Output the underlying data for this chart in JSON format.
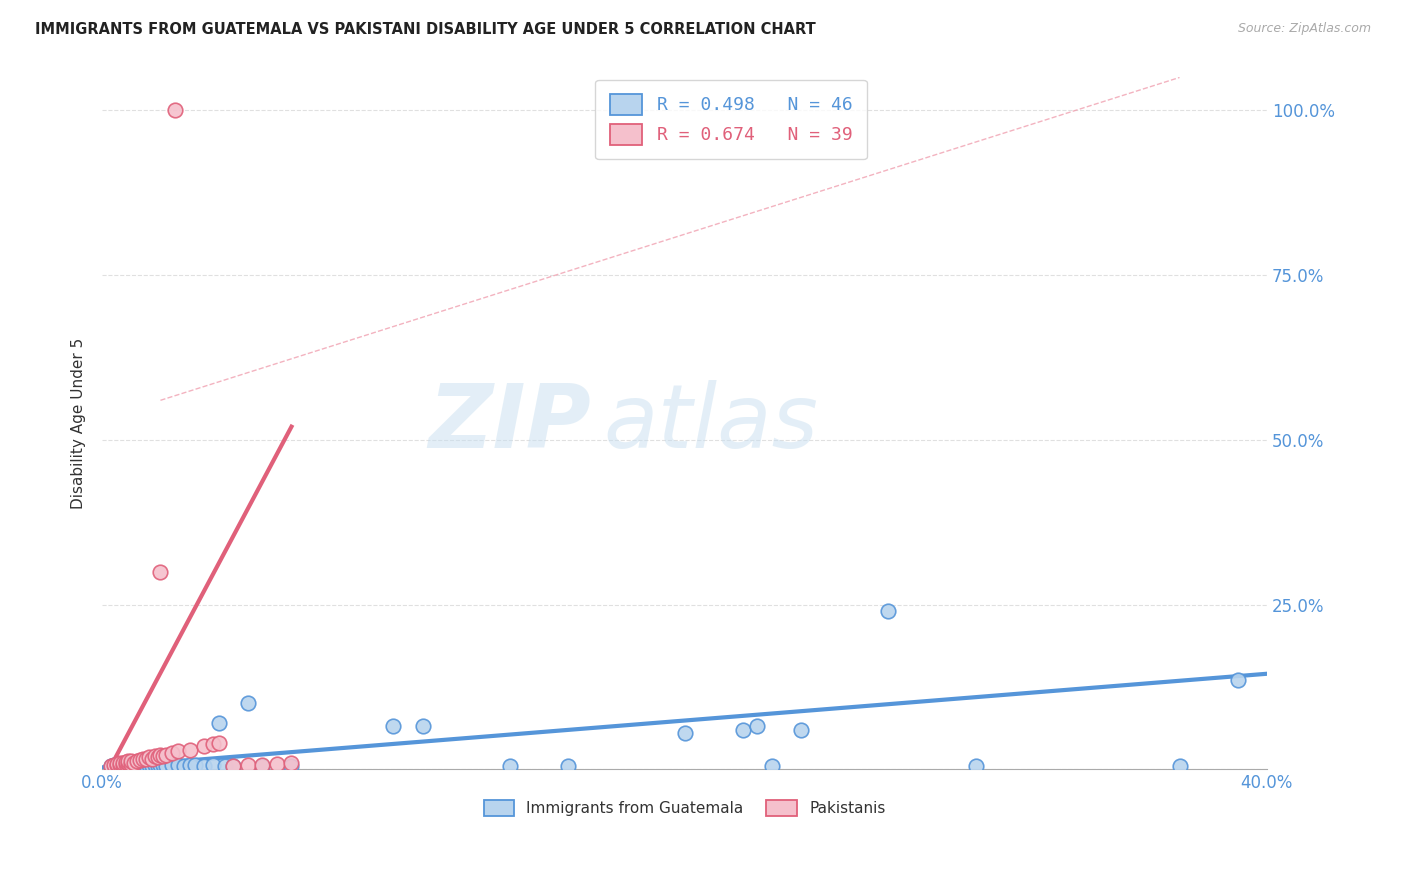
{
  "title": "IMMIGRANTS FROM GUATEMALA VS PAKISTANI DISABILITY AGE UNDER 5 CORRELATION CHART",
  "source": "Source: ZipAtlas.com",
  "ylabel": "Disability Age Under 5",
  "xlim": [
    0.0,
    0.4
  ],
  "ylim": [
    0.0,
    1.05
  ],
  "watermark_zip": "ZIP",
  "watermark_atlas": "atlas",
  "blue_color": "#b8d4ee",
  "blue_line_color": "#5595d9",
  "pink_color": "#f5c0cc",
  "pink_line_color": "#e0607a",
  "legend_blue_R": "R = 0.498",
  "legend_blue_N": "N = 46",
  "legend_pink_R": "R = 0.674",
  "legend_pink_N": "N = 39",
  "legend_label_blue": "Immigrants from Guatemala",
  "legend_label_pink": "Pakistanis",
  "blue_scatter_x": [
    0.003,
    0.004,
    0.005,
    0.006,
    0.007,
    0.008,
    0.009,
    0.01,
    0.011,
    0.012,
    0.013,
    0.014,
    0.015,
    0.016,
    0.017,
    0.018,
    0.019,
    0.02,
    0.021,
    0.022,
    0.024,
    0.026,
    0.028,
    0.03,
    0.032,
    0.035,
    0.038,
    0.04,
    0.042,
    0.045,
    0.05,
    0.055,
    0.065,
    0.1,
    0.11,
    0.14,
    0.16,
    0.2,
    0.22,
    0.225,
    0.23,
    0.24,
    0.27,
    0.3,
    0.37,
    0.39
  ],
  "blue_scatter_y": [
    0.005,
    0.006,
    0.007,
    0.005,
    0.008,
    0.006,
    0.007,
    0.008,
    0.005,
    0.006,
    0.007,
    0.005,
    0.006,
    0.007,
    0.005,
    0.006,
    0.005,
    0.007,
    0.006,
    0.005,
    0.006,
    0.007,
    0.005,
    0.006,
    0.007,
    0.005,
    0.006,
    0.07,
    0.005,
    0.005,
    0.1,
    0.005,
    0.005,
    0.065,
    0.065,
    0.005,
    0.005,
    0.055,
    0.06,
    0.065,
    0.005,
    0.06,
    0.24,
    0.005,
    0.005,
    0.135
  ],
  "pink_scatter_x": [
    0.003,
    0.004,
    0.005,
    0.005,
    0.006,
    0.006,
    0.007,
    0.007,
    0.008,
    0.008,
    0.009,
    0.009,
    0.01,
    0.01,
    0.011,
    0.012,
    0.013,
    0.014,
    0.015,
    0.016,
    0.017,
    0.018,
    0.019,
    0.02,
    0.021,
    0.022,
    0.024,
    0.026,
    0.03,
    0.035,
    0.038,
    0.04,
    0.045,
    0.05,
    0.055,
    0.06,
    0.065,
    0.02,
    0.025
  ],
  "pink_scatter_y": [
    0.005,
    0.006,
    0.007,
    0.008,
    0.006,
    0.009,
    0.007,
    0.01,
    0.008,
    0.011,
    0.009,
    0.012,
    0.008,
    0.013,
    0.01,
    0.012,
    0.014,
    0.016,
    0.015,
    0.018,
    0.016,
    0.02,
    0.018,
    0.022,
    0.02,
    0.022,
    0.025,
    0.028,
    0.03,
    0.035,
    0.038,
    0.04,
    0.005,
    0.006,
    0.007,
    0.008,
    0.009,
    0.3,
    1.0
  ],
  "blue_trend_x": [
    0.0,
    0.4
  ],
  "blue_trend_y": [
    0.003,
    0.145
  ],
  "pink_trend_x": [
    0.0,
    0.065
  ],
  "pink_trend_y": [
    -0.02,
    0.52
  ],
  "diag_line_x": [
    0.02,
    0.37
  ],
  "diag_line_y": [
    0.56,
    1.05
  ]
}
